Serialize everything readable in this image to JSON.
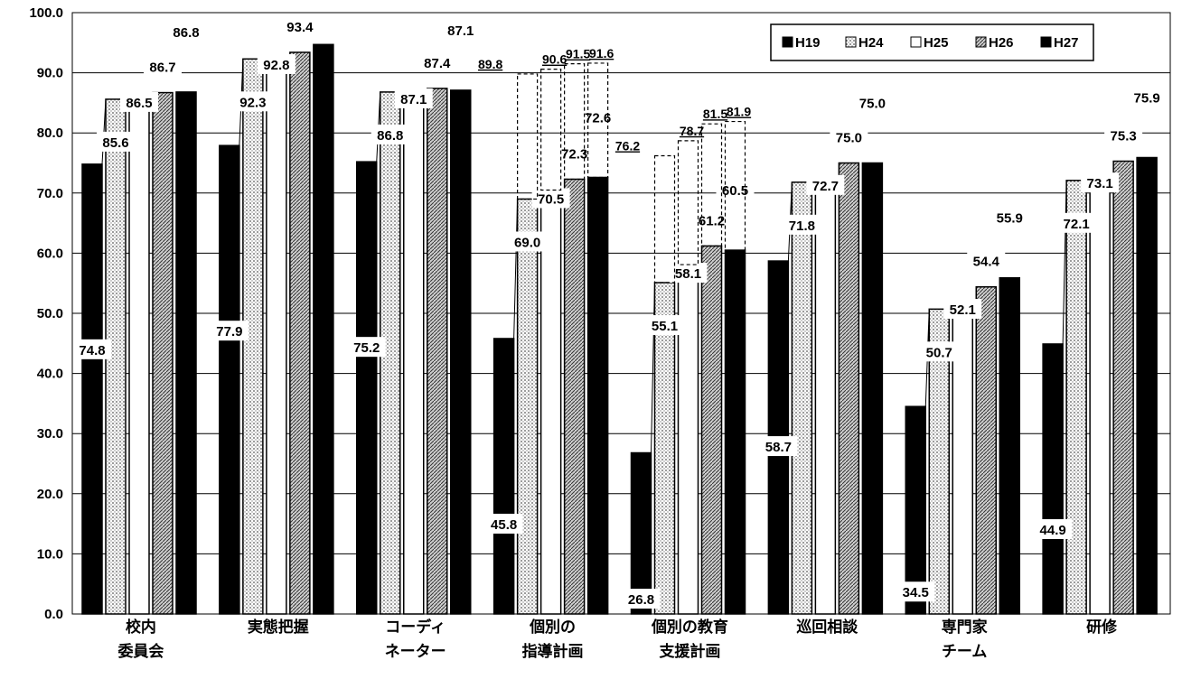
{
  "chart_data": {
    "type": "bar",
    "categories": [
      [
        "校内",
        "委員会"
      ],
      [
        "実態把握"
      ],
      [
        "コーディ",
        "ネーター"
      ],
      [
        "個別の",
        "指導計画"
      ],
      [
        "個別の教育",
        "支援計画"
      ],
      [
        "巡回相談"
      ],
      [
        "専門家",
        "チーム"
      ],
      [
        "研修"
      ]
    ],
    "series": [
      {
        "name": "H19",
        "values": [
          74.8,
          77.9,
          75.2,
          45.8,
          26.8,
          58.7,
          34.5,
          44.9
        ],
        "color": "#000000"
      },
      {
        "name": "H24",
        "values": [
          85.6,
          92.3,
          86.8,
          69.0,
          55.1,
          71.8,
          50.7,
          72.1
        ],
        "color": "#bdbdbd"
      },
      {
        "name": "H25",
        "values": [
          86.5,
          92.8,
          87.1,
          70.5,
          58.1,
          72.7,
          52.1,
          73.1
        ],
        "color": "#ffffff"
      },
      {
        "name": "H26",
        "values": [
          86.7,
          93.4,
          87.4,
          72.3,
          61.2,
          75.0,
          54.4,
          75.3
        ],
        "color": "#8a8a8a"
      },
      {
        "name": "H27",
        "values": [
          86.8,
          94.7,
          87.1,
          72.6,
          60.5,
          75.0,
          55.9,
          75.9
        ],
        "color": "#000000"
      }
    ],
    "extra_series": [
      {
        "category_index": 3,
        "values": [
          89.8,
          90.6,
          91.5,
          91.6
        ]
      },
      {
        "category_index": 4,
        "values": [
          76.2,
          78.7,
          81.5,
          81.9
        ]
      }
    ],
    "ylim": [
      0,
      100
    ],
    "yticks": [
      "0.0",
      "10.0",
      "20.0",
      "30.0",
      "40.0",
      "50.0",
      "60.0",
      "70.0",
      "80.0",
      "90.0",
      "100.0"
    ],
    "grid": true,
    "legend_position": "top-right"
  }
}
